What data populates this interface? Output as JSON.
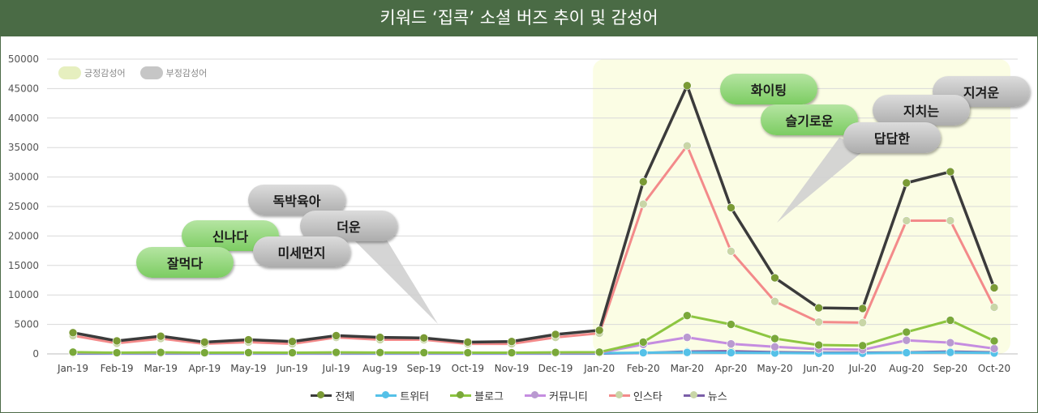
{
  "title": "키워드 ‘집콕’ 소셜 버즈 추이 및 감성어",
  "sentiment_legend": {
    "positive": {
      "label": "긍정감성어",
      "color": "#e6efbf"
    },
    "negative": {
      "label": "부정감성어",
      "color": "#c6c6c6"
    }
  },
  "chart_data": {
    "type": "line",
    "categories": [
      "Jan-19",
      "Feb-19",
      "Mar-19",
      "Apr-19",
      "May-19",
      "Jun-19",
      "Jul-19",
      "Aug-19",
      "Sep-19",
      "Oct-19",
      "Nov-19",
      "Dec-19",
      "Jan-20",
      "Feb-20",
      "Mar-20",
      "Apr-20",
      "May-20",
      "Jun-20",
      "Jul-20",
      "Aug-20",
      "Sep-20",
      "Oct-20"
    ],
    "ylim": [
      0,
      50000
    ],
    "yticks": [
      0,
      5000,
      10000,
      15000,
      20000,
      25000,
      30000,
      35000,
      40000,
      45000,
      50000
    ],
    "grid": true,
    "legend_position": "bottom",
    "highlight_range": [
      "Jan-20",
      "Oct-20"
    ],
    "highlight_color": "#fbfde4",
    "series": [
      {
        "name": "전체",
        "color": "#3b3b3b",
        "marker": "#7a9a35",
        "values": [
          3600,
          2200,
          3000,
          2000,
          2400,
          2100,
          3100,
          2800,
          2700,
          2000,
          2100,
          3300,
          4000,
          29200,
          45500,
          24800,
          12900,
          7800,
          7700,
          29000,
          30900,
          11200
        ]
      },
      {
        "name": "트위터",
        "color": "#55c1e8",
        "marker": "#55c1e8",
        "values": [
          150,
          100,
          120,
          100,
          110,
          100,
          120,
          110,
          110,
          100,
          100,
          120,
          130,
          200,
          250,
          200,
          150,
          100,
          100,
          200,
          250,
          150
        ]
      },
      {
        "name": "블로그",
        "color": "#8dc641",
        "marker": "#7aa83a",
        "values": [
          300,
          200,
          250,
          200,
          220,
          200,
          250,
          230,
          220,
          200,
          200,
          250,
          300,
          2000,
          6500,
          5000,
          2600,
          1500,
          1400,
          3700,
          5700,
          2200
        ]
      },
      {
        "name": "커뮤니티",
        "color": "#c58de0",
        "marker": "#b99ad0",
        "values": [
          200,
          150,
          180,
          150,
          160,
          150,
          180,
          170,
          160,
          150,
          150,
          180,
          200,
          1600,
          2800,
          1700,
          1200,
          800,
          700,
          2300,
          1900,
          900
        ]
      },
      {
        "name": "인스타",
        "color": "#f38a8a",
        "marker": "#c9d6a7",
        "values": [
          3100,
          1800,
          2600,
          1700,
          2000,
          1700,
          2800,
          2400,
          2400,
          1700,
          1700,
          2800,
          3500,
          25400,
          35300,
          17400,
          8900,
          5400,
          5300,
          22600,
          22600,
          7900
        ]
      },
      {
        "name": "뉴스",
        "color": "#7b5ea8",
        "marker": "#c9d6a7",
        "values": [
          50,
          50,
          50,
          50,
          50,
          50,
          50,
          50,
          50,
          50,
          50,
          50,
          60,
          150,
          400,
          450,
          300,
          200,
          200,
          250,
          400,
          250
        ]
      }
    ]
  },
  "bubbles": {
    "positive": [
      "신나다",
      "잘먹다",
      "화이팅",
      "슬기로운"
    ],
    "negative": [
      "독박육아",
      "더운",
      "미세먼지",
      "지치는",
      "지겨운",
      "답답한"
    ]
  }
}
